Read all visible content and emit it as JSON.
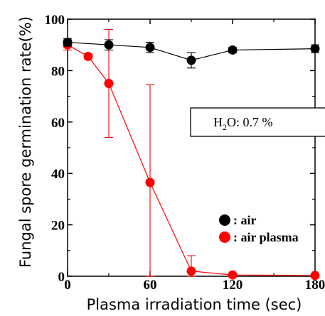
{
  "chart_data": {
    "type": "line",
    "xlabel": "Plasma irradiation time (sec)",
    "ylabel": "Fungal spore germination rate(%)",
    "xlim": [
      0,
      180
    ],
    "ylim": [
      0,
      100
    ],
    "xticks": [
      "0",
      "60",
      "120",
      "180"
    ],
    "yticks": [
      "0",
      "20",
      "40",
      "60",
      "80",
      "100"
    ],
    "series": [
      {
        "name": "air",
        "color": "#000000",
        "x": [
          0,
          30,
          60,
          90,
          120,
          180
        ],
        "y": [
          91,
          90,
          89,
          84,
          88,
          88.5
        ],
        "err": [
          1.5,
          2,
          2,
          3,
          1,
          1.5
        ]
      },
      {
        "name": "air plasma",
        "color": "#ff0000",
        "x": [
          0,
          15,
          30,
          60,
          90,
          120,
          180
        ],
        "y": [
          90,
          85.5,
          75,
          36.5,
          2,
          0.5,
          0.3
        ],
        "err": [
          2,
          1,
          21,
          38,
          6,
          0.5,
          0.3
        ]
      }
    ],
    "legend": {
      "position": "bottom-right",
      "entries": [
        ": air",
        ": air plasma"
      ]
    },
    "annotation": {
      "main": "H",
      "sub": "2",
      "rest": "O: 0.7 %"
    },
    "grid": false
  }
}
